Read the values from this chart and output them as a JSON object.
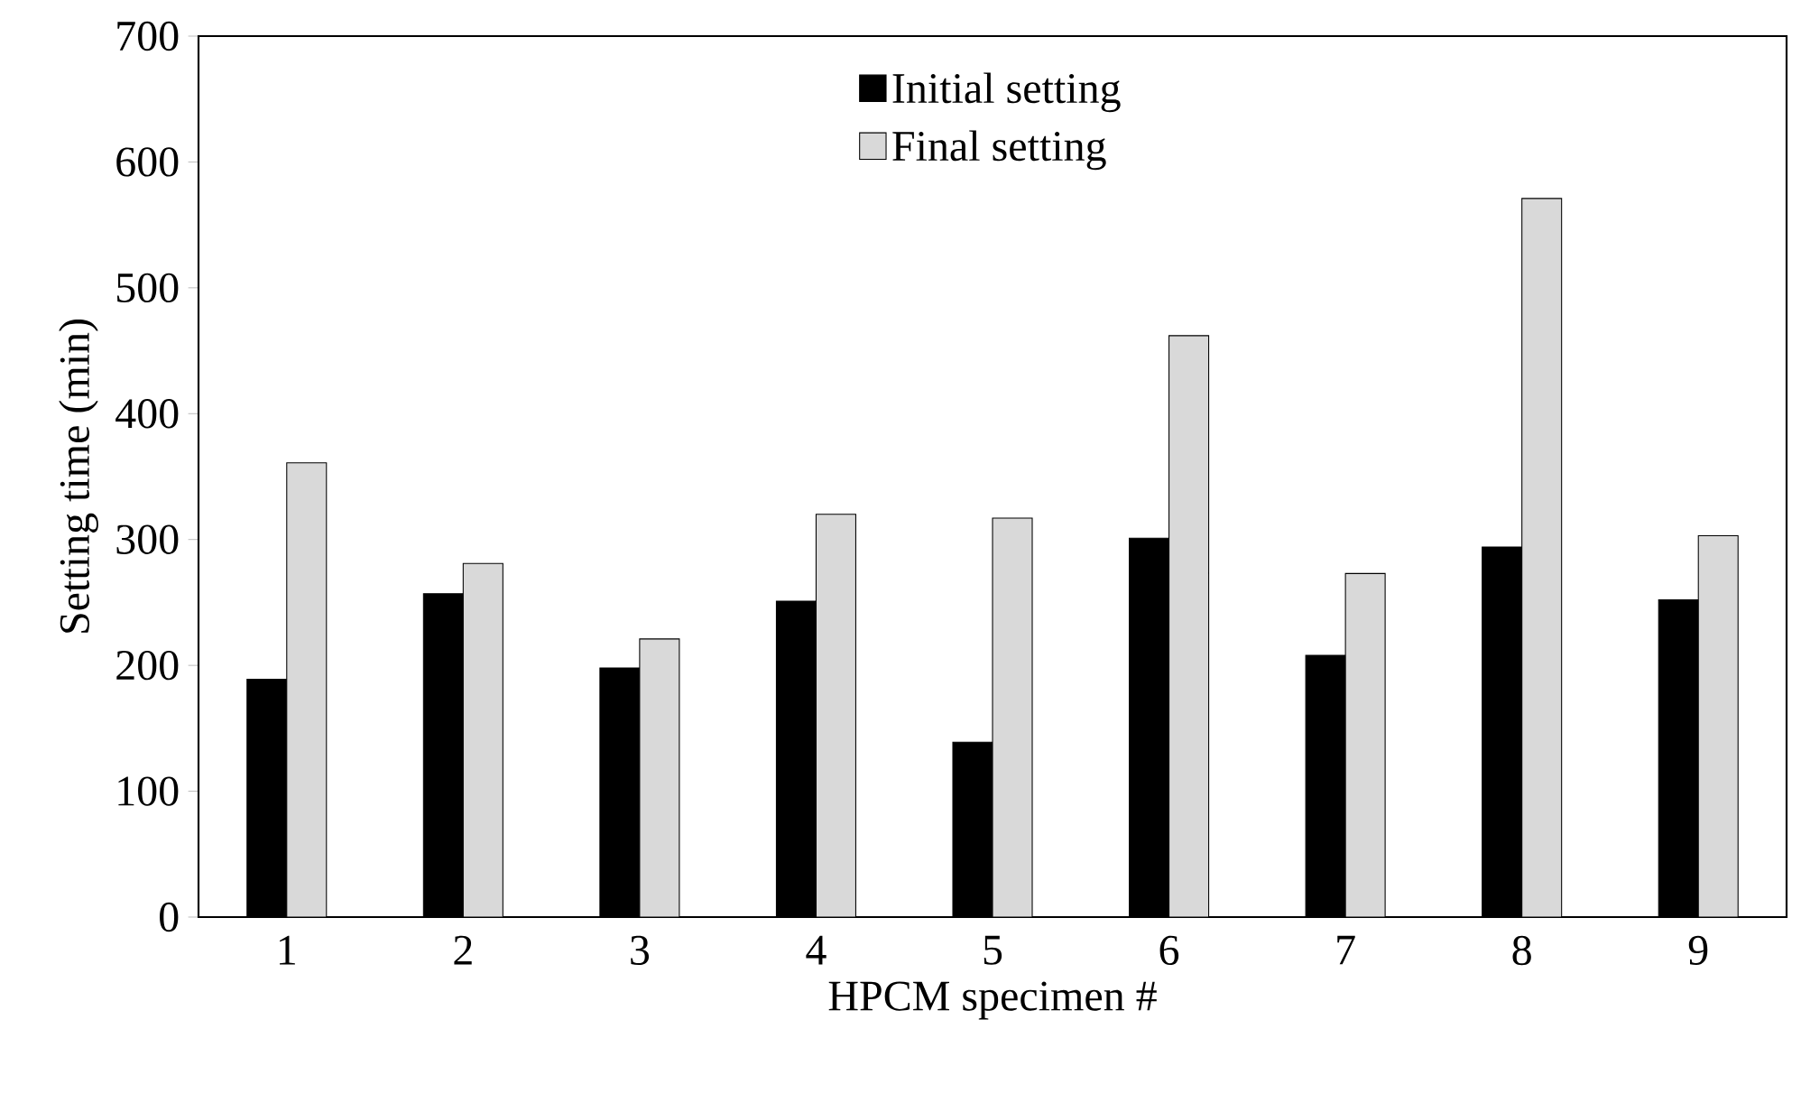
{
  "chart_data": {
    "type": "bar",
    "xlabel": "HPCM specimen #",
    "ylabel": "Setting time (min)",
    "categories": [
      "1",
      "2",
      "3",
      "4",
      "5",
      "6",
      "7",
      "8",
      "9"
    ],
    "series": [
      {
        "name": "Initial setting",
        "color": "#000000",
        "values": [
          189,
          257,
          198,
          251,
          139,
          301,
          208,
          294,
          252
        ]
      },
      {
        "name": "Final setting",
        "color": "#d9d9d9",
        "values": [
          361,
          281,
          221,
          320,
          317,
          462,
          273,
          571,
          303
        ]
      }
    ],
    "ylim": [
      0,
      700
    ],
    "yticks": [
      0,
      100,
      200,
      300,
      400,
      500,
      600,
      700
    ],
    "grid": false,
    "legend": "top"
  }
}
